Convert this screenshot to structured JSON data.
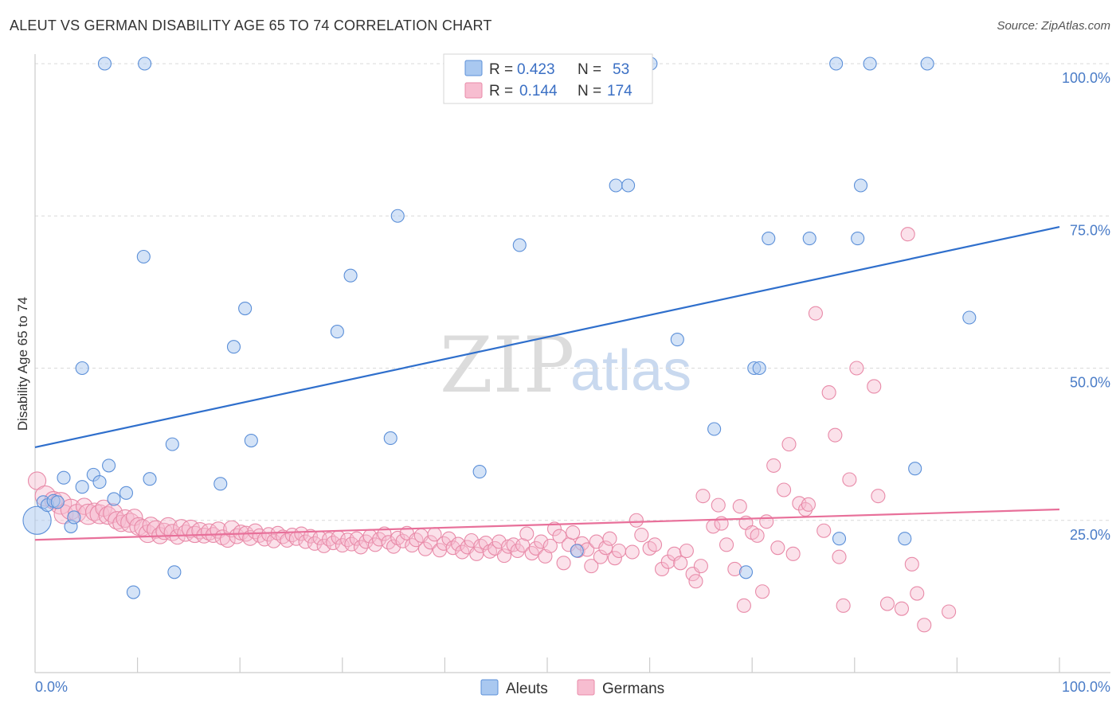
{
  "title": "ALEUT VS GERMAN DISABILITY AGE 65 TO 74 CORRELATION CHART",
  "source": "Source: ZipAtlas.com",
  "watermark": {
    "zip": "ZIP",
    "atlas": "atlas"
  },
  "colors": {
    "aleuts_fill": "#a9c8f0",
    "aleuts_stroke": "#5b8fd8",
    "aleuts_line": "#2f6fcc",
    "germans_fill": "#f7bdd0",
    "germans_stroke": "#e88aa8",
    "germans_line": "#e8709a",
    "tick_text": "#4a7cc7",
    "grid": "#d9d9d9"
  },
  "legend": {
    "rows": [
      {
        "r_label": "R = ",
        "r_value": "0.423",
        "n_label": "N = ",
        "n_value": "53"
      },
      {
        "r_label": "R = ",
        "r_value": "0.144",
        "n_label": "N = ",
        "n_value": "174"
      }
    ]
  },
  "bottom_legend": [
    "Aleuts",
    "Germans"
  ],
  "chart_data": {
    "type": "scatter",
    "title": "ALEUT VS GERMAN DISABILITY AGE 65 TO 74 CORRELATION CHART",
    "xlabel": "",
    "ylabel": "Disability Age 65 to 74",
    "xlim": [
      0,
      100
    ],
    "ylim": [
      0,
      105
    ],
    "x_tick_labels": [
      "0.0%",
      "100.0%"
    ],
    "y_ticks": [
      25,
      50,
      75,
      100
    ],
    "y_tick_labels": [
      "25.0%",
      "50.0%",
      "75.0%",
      "100.0%"
    ],
    "grid": "horizontal dashed",
    "legend_position": "top-center",
    "series": [
      {
        "name": "Aleuts",
        "r": 0.423,
        "n": 53,
        "trend": [
          [
            0,
            37.0
          ],
          [
            100,
            73.2
          ]
        ],
        "points": [
          [
            0.2,
            25,
            2.2
          ],
          [
            0.8,
            28,
            1
          ],
          [
            1.2,
            27.5,
            1
          ],
          [
            1.8,
            28.2,
            1
          ],
          [
            2.2,
            28,
            1
          ],
          [
            2.8,
            32,
            1
          ],
          [
            3.5,
            24,
            1
          ],
          [
            3.8,
            25.5,
            1
          ],
          [
            4.6,
            50,
            1
          ],
          [
            4.6,
            30.5,
            1
          ],
          [
            5.7,
            32.5,
            1
          ],
          [
            6.3,
            31.3,
            1
          ],
          [
            7.2,
            34,
            1
          ],
          [
            7.7,
            28.5,
            1
          ],
          [
            8.9,
            29.5,
            1
          ],
          [
            9.6,
            13.2,
            1
          ],
          [
            10.6,
            68.3,
            1
          ],
          [
            11.2,
            31.8,
            1
          ],
          [
            13.4,
            37.5,
            1
          ],
          [
            13.6,
            16.5,
            1
          ],
          [
            18.1,
            31,
            1
          ],
          [
            19.4,
            53.5,
            1
          ],
          [
            20.5,
            59.8,
            1
          ],
          [
            21.1,
            38.1,
            1
          ],
          [
            29.5,
            56,
            1
          ],
          [
            30.8,
            65.2,
            1
          ],
          [
            34.7,
            38.5,
            1
          ],
          [
            35.4,
            75,
            1
          ],
          [
            43.4,
            33,
            1
          ],
          [
            47.3,
            70.2,
            1
          ],
          [
            52.9,
            20,
            1
          ],
          [
            56.7,
            80,
            1
          ],
          [
            57.9,
            80,
            1
          ],
          [
            62.7,
            54.7,
            1
          ],
          [
            66.3,
            40,
            1
          ],
          [
            70.2,
            50,
            1
          ],
          [
            70.7,
            50,
            1
          ],
          [
            71.6,
            71.3,
            1
          ],
          [
            75.6,
            71.3,
            1
          ],
          [
            80.3,
            71.3,
            1
          ],
          [
            80.6,
            80,
            1
          ],
          [
            78.5,
            22,
            1
          ],
          [
            84.9,
            22,
            1
          ],
          [
            85.9,
            33.5,
            1
          ],
          [
            91.2,
            58.3,
            1
          ],
          [
            69.4,
            16.5,
            1
          ],
          [
            6.8,
            100,
            1
          ],
          [
            10.7,
            100,
            1
          ],
          [
            55.2,
            100,
            1
          ],
          [
            60.1,
            100,
            1
          ],
          [
            78.2,
            100,
            1
          ],
          [
            81.5,
            100,
            1
          ],
          [
            87.1,
            100,
            1
          ]
        ]
      },
      {
        "name": "Germans",
        "r": 0.144,
        "n": 174,
        "trend": [
          [
            0,
            21.8
          ],
          [
            100,
            26.8
          ]
        ],
        "points": [
          [
            0.2,
            31.5,
            1.3
          ],
          [
            1.0,
            29.0,
            1.5
          ],
          [
            1.8,
            28.3,
            1.3
          ],
          [
            2.5,
            27.8,
            1.6
          ],
          [
            2.8,
            26.0,
            1.4
          ],
          [
            3.5,
            26.8,
            1.5
          ],
          [
            4.1,
            26.2,
            1.3
          ],
          [
            4.8,
            27.3,
            1.2
          ],
          [
            5.2,
            26.0,
            1.5
          ],
          [
            5.8,
            26.4,
            1.3
          ],
          [
            6.3,
            26.0,
            1.4
          ],
          [
            6.7,
            27.0,
            1.2
          ],
          [
            7.1,
            25.8,
            1.3
          ],
          [
            7.6,
            26.2,
            1.4
          ],
          [
            8.0,
            25.0,
            1.3
          ],
          [
            8.4,
            24.5,
            1.2
          ],
          [
            8.8,
            25.3,
            1.3
          ],
          [
            9.3,
            24.6,
            1.4
          ],
          [
            9.7,
            25.5,
            1.2
          ],
          [
            10.1,
            24.0,
            1.3
          ],
          [
            10.5,
            23.8,
            1.2
          ],
          [
            11.0,
            22.8,
            1.3
          ],
          [
            11.3,
            24.2,
            1.2
          ],
          [
            11.8,
            23.5,
            1.3
          ],
          [
            12.2,
            22.5,
            1.2
          ],
          [
            12.6,
            23.2,
            1.2
          ],
          [
            13.0,
            24.0,
            1.3
          ],
          [
            13.4,
            23.0,
            1.2
          ],
          [
            13.9,
            22.3,
            1.1
          ],
          [
            14.3,
            23.8,
            1.2
          ],
          [
            14.7,
            22.9,
            1.2
          ],
          [
            15.2,
            23.6,
            1.3
          ],
          [
            15.6,
            22.7,
            1.2
          ],
          [
            16.1,
            23.3,
            1.2
          ],
          [
            16.5,
            22.5,
            1.1
          ],
          [
            17.0,
            23.1,
            1.2
          ],
          [
            17.4,
            22.6,
            1.1
          ],
          [
            17.9,
            23.4,
            1.2
          ],
          [
            18.3,
            22.2,
            1.1
          ],
          [
            18.8,
            21.8,
            1.1
          ],
          [
            19.2,
            23.6,
            1.2
          ],
          [
            19.7,
            22.4,
            1.1
          ],
          [
            20.1,
            23.0,
            1.1
          ],
          [
            20.6,
            22.8,
            1.1
          ],
          [
            21.0,
            22.1,
            1.1
          ],
          [
            21.5,
            23.2,
            1.1
          ],
          [
            21.9,
            22.5,
            1.0
          ],
          [
            22.4,
            21.9,
            1.0
          ],
          [
            22.8,
            22.7,
            1.0
          ],
          [
            23.3,
            21.6,
            1.0
          ],
          [
            23.7,
            22.9,
            1.0
          ],
          [
            24.2,
            22.3,
            1.0
          ],
          [
            24.6,
            21.7,
            1.0
          ],
          [
            25.1,
            22.6,
            1.0
          ],
          [
            25.5,
            22.0,
            1.0
          ],
          [
            26.0,
            22.8,
            1.0
          ],
          [
            26.4,
            21.5,
            1.0
          ],
          [
            26.9,
            22.4,
            1.0
          ],
          [
            27.3,
            21.2,
            1.0
          ],
          [
            27.8,
            22.1,
            1.0
          ],
          [
            28.2,
            20.8,
            1.0
          ],
          [
            28.7,
            21.9,
            1.0
          ],
          [
            29.1,
            21.3,
            1.0
          ],
          [
            29.6,
            22.2,
            1.0
          ],
          [
            30.0,
            20.9,
            1.0
          ],
          [
            30.5,
            21.8,
            1.0
          ],
          [
            30.9,
            21.1,
            1.0
          ],
          [
            31.4,
            22.0,
            1.0
          ],
          [
            31.8,
            20.6,
            1.0
          ],
          [
            32.3,
            21.5,
            1.0
          ],
          [
            32.7,
            22.4,
            1.0
          ],
          [
            33.2,
            21.0,
            1.0
          ],
          [
            33.6,
            21.9,
            1.0
          ],
          [
            34.1,
            22.8,
            1.0
          ],
          [
            34.5,
            21.4,
            1.0
          ],
          [
            35.0,
            20.7,
            1.0
          ],
          [
            35.4,
            22.1,
            1.0
          ],
          [
            35.9,
            21.6,
            1.0
          ],
          [
            36.3,
            22.9,
            1.0
          ],
          [
            36.8,
            20.9,
            1.0
          ],
          [
            37.2,
            21.8,
            1.0
          ],
          [
            37.7,
            22.5,
            1.0
          ],
          [
            38.1,
            20.3,
            1.0
          ],
          [
            38.6,
            21.4,
            1.0
          ],
          [
            39.0,
            22.7,
            1.0
          ],
          [
            39.5,
            20.1,
            1.0
          ],
          [
            39.9,
            21.2,
            1.0
          ],
          [
            40.4,
            22.0,
            1.0
          ],
          [
            40.8,
            20.5,
            1.0
          ],
          [
            41.3,
            21.1,
            1.0
          ],
          [
            41.7,
            19.8,
            1.0
          ],
          [
            42.2,
            20.6,
            1.0
          ],
          [
            42.6,
            21.7,
            1.0
          ],
          [
            43.1,
            19.5,
            1.0
          ],
          [
            43.5,
            20.8,
            1.0
          ],
          [
            44.0,
            21.3,
            1.0
          ],
          [
            44.4,
            19.9,
            1.0
          ],
          [
            44.9,
            20.4,
            1.0
          ],
          [
            45.3,
            21.5,
            1.0
          ],
          [
            45.8,
            19.2,
            1.0
          ],
          [
            46.2,
            20.7,
            1.0
          ],
          [
            46.7,
            21.0,
            1.0
          ],
          [
            47.1,
            20.0,
            1.0
          ],
          [
            47.6,
            20.9,
            1.0
          ],
          [
            48.0,
            22.8,
            1.0
          ],
          [
            48.5,
            19.6,
            1.0
          ],
          [
            48.9,
            20.4,
            1.0
          ],
          [
            49.4,
            21.5,
            1.0
          ],
          [
            49.8,
            19.1,
            1.0
          ],
          [
            50.3,
            20.8,
            1.0
          ],
          [
            50.7,
            23.6,
            1.0
          ],
          [
            51.2,
            22.4,
            1.0
          ],
          [
            51.6,
            18.0,
            1.0
          ],
          [
            52.1,
            21.0,
            1.0
          ],
          [
            52.5,
            23.0,
            1.0
          ],
          [
            53.0,
            20.0,
            1.0
          ],
          [
            53.4,
            21.2,
            1.0
          ],
          [
            53.9,
            20.2,
            1.0
          ],
          [
            54.3,
            17.5,
            1.0
          ],
          [
            54.8,
            21.5,
            1.0
          ],
          [
            55.2,
            19.0,
            1.0
          ],
          [
            55.7,
            20.5,
            1.0
          ],
          [
            56.1,
            22.0,
            1.0
          ],
          [
            56.6,
            18.8,
            1.0
          ],
          [
            57.0,
            20.0,
            1.0
          ],
          [
            58.3,
            19.8,
            1.0
          ],
          [
            58.7,
            25.0,
            1.0
          ],
          [
            59.2,
            22.6,
            1.0
          ],
          [
            60.0,
            20.4,
            1.0
          ],
          [
            60.5,
            21.0,
            1.0
          ],
          [
            61.2,
            17.0,
            1.0
          ],
          [
            61.8,
            18.2,
            1.0
          ],
          [
            62.4,
            19.5,
            1.0
          ],
          [
            63.0,
            18.0,
            1.0
          ],
          [
            63.6,
            20.0,
            1.0
          ],
          [
            64.2,
            16.2,
            1.0
          ],
          [
            64.5,
            15.0,
            1.0
          ],
          [
            65.0,
            17.5,
            1.0
          ],
          [
            65.2,
            29.0,
            1.0
          ],
          [
            66.2,
            24.0,
            1.0
          ],
          [
            66.7,
            27.5,
            1.0
          ],
          [
            67.0,
            24.5,
            1.0
          ],
          [
            67.5,
            21.0,
            1.0
          ],
          [
            68.3,
            17.0,
            1.0
          ],
          [
            68.8,
            27.3,
            1.0
          ],
          [
            69.2,
            11.0,
            1.0
          ],
          [
            69.4,
            24.6,
            1.0
          ],
          [
            70.0,
            23.0,
            1.0
          ],
          [
            70.5,
            22.5,
            1.0
          ],
          [
            71.0,
            13.3,
            1.0
          ],
          [
            71.4,
            24.8,
            1.0
          ],
          [
            72.1,
            34.0,
            1.0
          ],
          [
            72.5,
            20.5,
            1.0
          ],
          [
            73.1,
            30.0,
            1.0
          ],
          [
            73.6,
            37.5,
            1.0
          ],
          [
            74.0,
            19.5,
            1.0
          ],
          [
            74.6,
            27.8,
            1.0
          ],
          [
            75.2,
            26.8,
            1.0
          ],
          [
            75.5,
            27.6,
            1.0
          ],
          [
            76.2,
            59.0,
            1.0
          ],
          [
            77.0,
            23.3,
            1.0
          ],
          [
            77.5,
            46.0,
            1.0
          ],
          [
            78.1,
            39.0,
            1.0
          ],
          [
            78.5,
            19.0,
            1.0
          ],
          [
            78.9,
            11.0,
            1.0
          ],
          [
            79.5,
            31.7,
            1.0
          ],
          [
            80.2,
            50.0,
            1.0
          ],
          [
            81.9,
            47.0,
            1.0
          ],
          [
            82.3,
            29.0,
            1.0
          ],
          [
            83.2,
            11.3,
            1.0
          ],
          [
            84.6,
            10.5,
            1.0
          ],
          [
            85.2,
            72.0,
            1.0
          ],
          [
            85.6,
            17.8,
            1.0
          ],
          [
            86.1,
            13.0,
            1.0
          ],
          [
            86.8,
            7.8,
            1.0
          ],
          [
            89.2,
            10.0,
            1.0
          ]
        ]
      }
    ]
  }
}
